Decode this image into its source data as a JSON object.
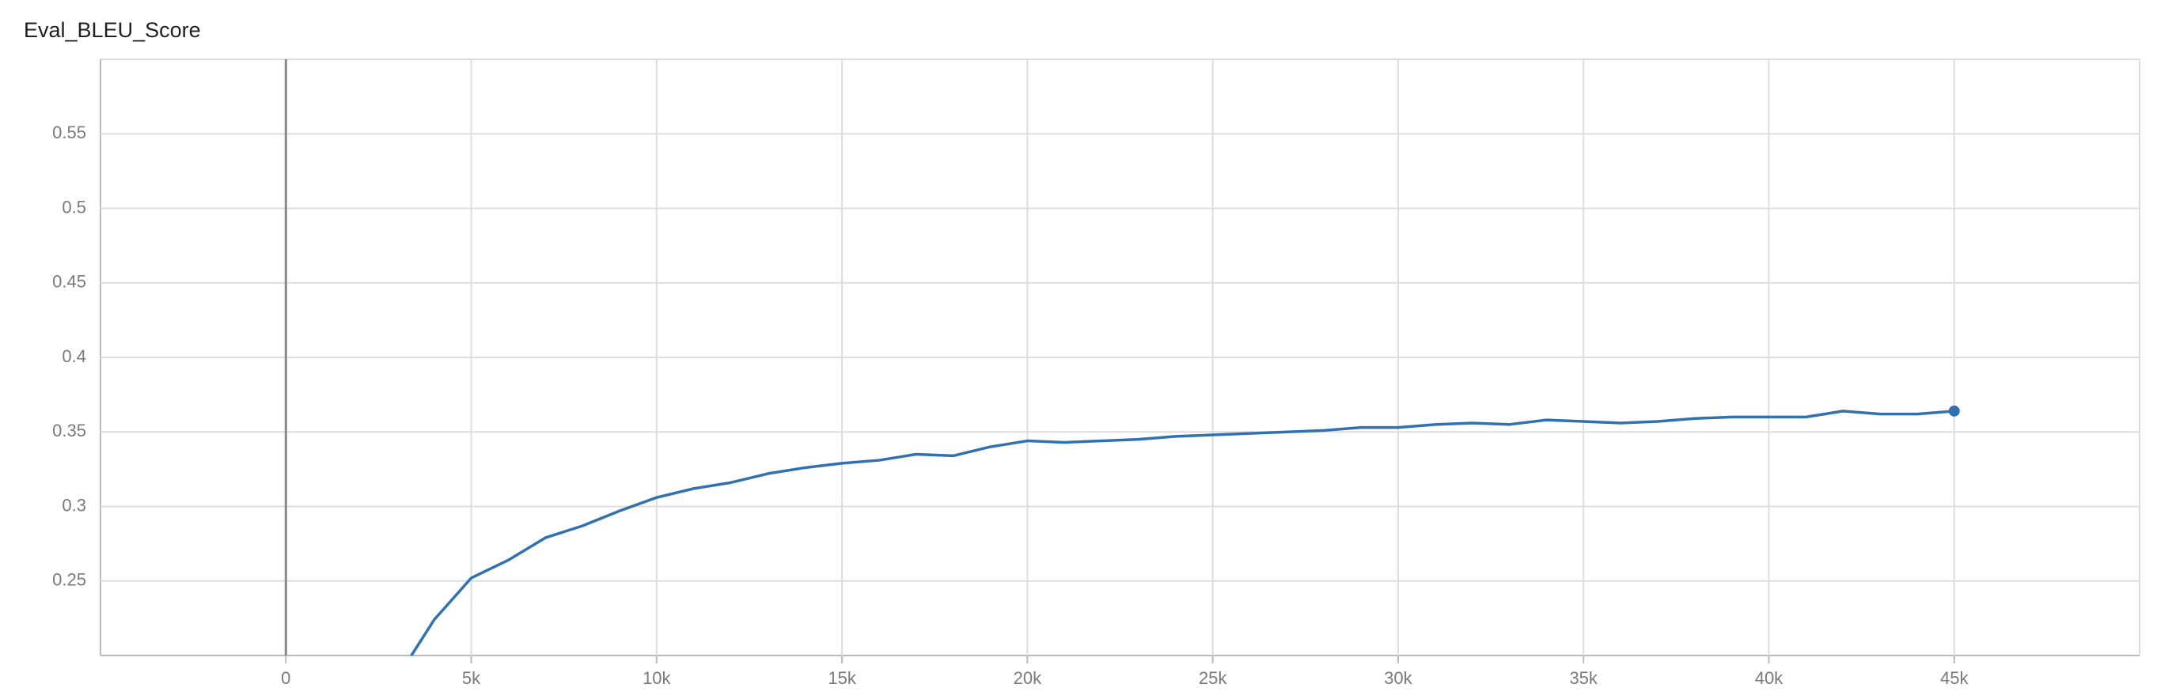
{
  "chart_data": {
    "type": "line",
    "title": "Eval_BLEU_Score",
    "x": [
      3000,
      4000,
      5000,
      6000,
      7000,
      8000,
      9000,
      10000,
      11000,
      12000,
      13000,
      14000,
      15000,
      16000,
      17000,
      18000,
      19000,
      20000,
      21000,
      22000,
      23000,
      24000,
      25000,
      26000,
      27000,
      28000,
      29000,
      30000,
      31000,
      32000,
      33000,
      34000,
      35000,
      36000,
      37000,
      38000,
      39000,
      40000,
      41000,
      42000,
      43000,
      44000,
      45000
    ],
    "series": [
      {
        "color": "#3171b0",
        "values": [
          0.185,
          0.224,
          0.252,
          0.264,
          0.279,
          0.287,
          0.297,
          0.306,
          0.312,
          0.316,
          0.322,
          0.326,
          0.329,
          0.331,
          0.335,
          0.334,
          0.34,
          0.344,
          0.343,
          0.344,
          0.345,
          0.347,
          0.348,
          0.349,
          0.35,
          0.351,
          0.353,
          0.353,
          0.355,
          0.356,
          0.355,
          0.358,
          0.357,
          0.356,
          0.357,
          0.359,
          0.36,
          0.36,
          0.36,
          0.364,
          0.362,
          0.362,
          0.364
        ]
      }
    ],
    "xlim": [
      -5000,
      50000
    ],
    "xticks": [
      0,
      {
        "value": 5000,
        "label": "5k"
      },
      {
        "value": 10000,
        "label": "10k"
      },
      {
        "value": 15000,
        "label": "15k"
      },
      {
        "value": 20000,
        "label": "20k"
      },
      {
        "value": 25000,
        "label": "25k"
      },
      {
        "value": 30000,
        "label": "30k"
      },
      {
        "value": 35000,
        "label": "35k"
      },
      {
        "value": 40000,
        "label": "40k"
      },
      {
        "value": 45000,
        "label": "45k"
      }
    ],
    "ylim": [
      0.2,
      0.6
    ],
    "yticks": [
      0.25,
      0.3,
      0.35,
      0.4,
      0.45,
      0.5,
      0.55
    ],
    "grid": true
  }
}
